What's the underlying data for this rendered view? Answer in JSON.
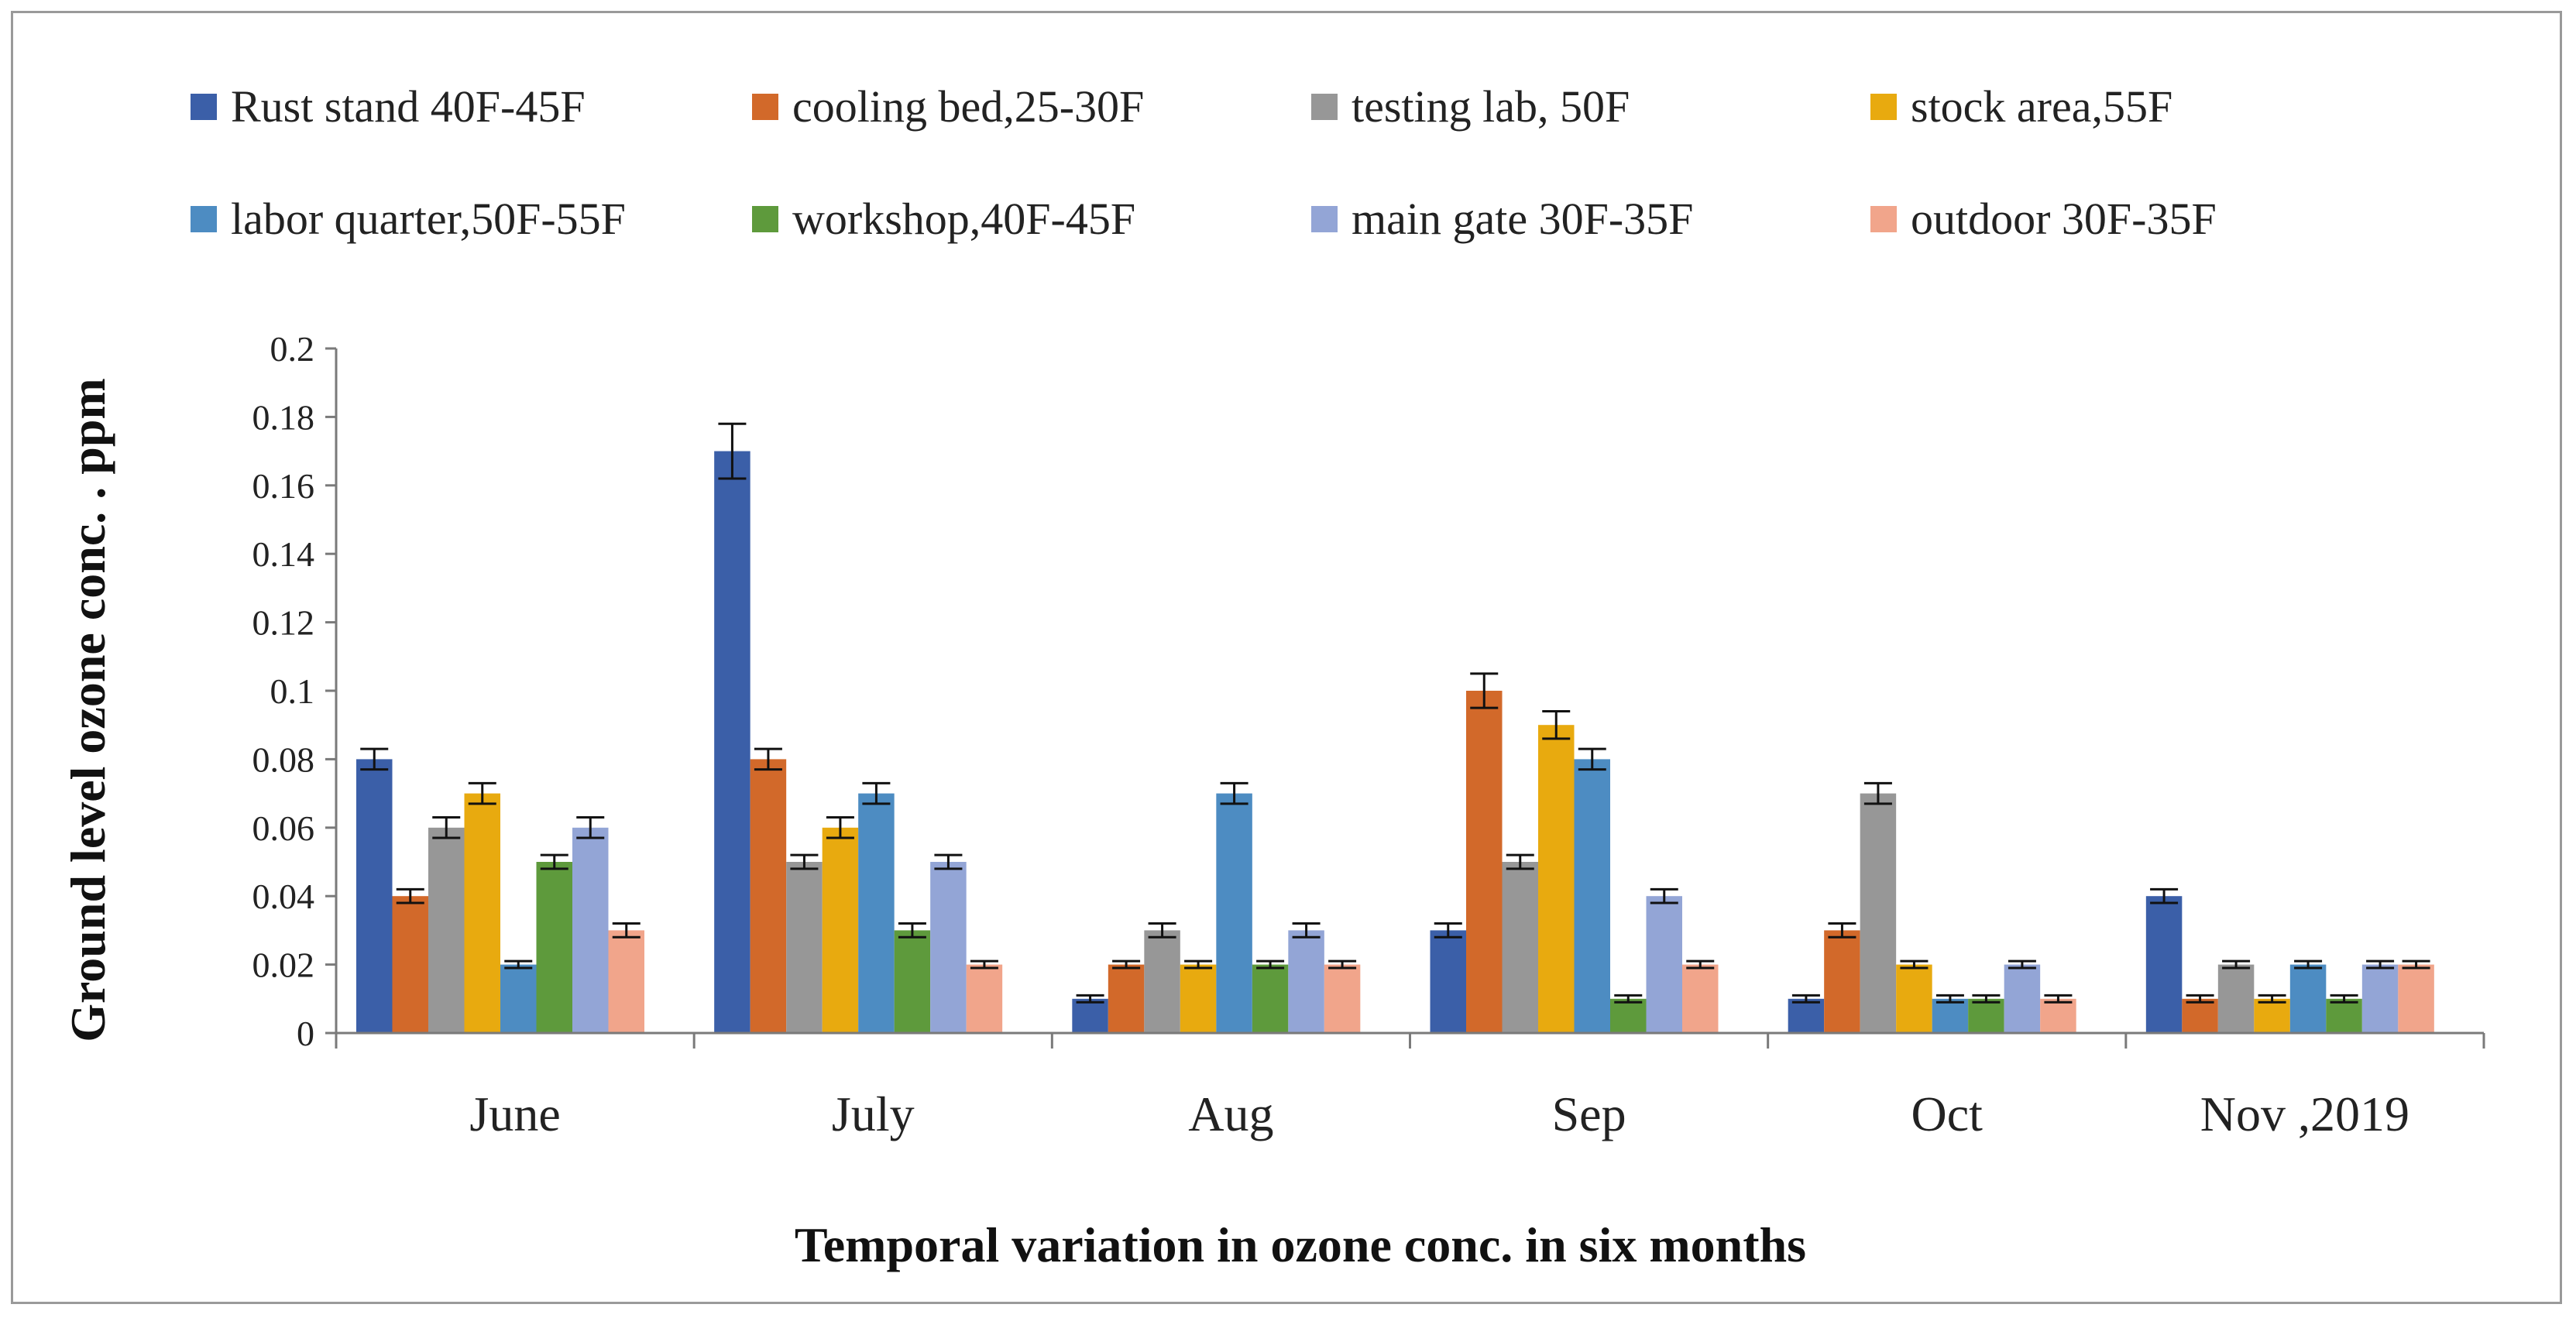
{
  "chart_data": {
    "type": "bar",
    "title": "",
    "xlabel": "Temporal variation in ozone conc. in six months",
    "ylabel": "Ground level  ozone conc. . ppm",
    "ylim": [
      0,
      0.2
    ],
    "y_ticks": [
      "0",
      "0.02",
      "0.04",
      "0.06",
      "0.08",
      "0.1",
      "0.12",
      "0.14",
      "0.16",
      "0.18",
      "0.2"
    ],
    "grid": false,
    "error_bars": true,
    "legend_position": "top",
    "categories": [
      "June",
      "July",
      "Aug",
      "Sep",
      "Oct",
      "Nov ,2019"
    ],
    "series": [
      {
        "name": "Rust stand 40F-45F",
        "color": "#3b5fa8",
        "values": [
          0.08,
          0.17,
          0.01,
          0.03,
          0.01,
          0.04
        ],
        "errors": [
          0.003,
          0.008,
          0.001,
          0.002,
          0.001,
          0.002
        ]
      },
      {
        "name": "cooling bed,25-30F",
        "color": "#d2692a",
        "values": [
          0.04,
          0.08,
          0.02,
          0.1,
          0.03,
          0.01
        ],
        "errors": [
          0.002,
          0.003,
          0.001,
          0.005,
          0.002,
          0.001
        ]
      },
      {
        "name": "testing lab, 50F",
        "color": "#979797",
        "values": [
          0.06,
          0.05,
          0.03,
          0.05,
          0.07,
          0.02
        ],
        "errors": [
          0.003,
          0.002,
          0.002,
          0.002,
          0.003,
          0.001
        ]
      },
      {
        "name": "stock area,55F",
        "color": "#e8aa0f",
        "values": [
          0.07,
          0.06,
          0.02,
          0.09,
          0.02,
          0.01
        ],
        "errors": [
          0.003,
          0.003,
          0.001,
          0.004,
          0.001,
          0.001
        ]
      },
      {
        "name": "labor quarter,50F-55F",
        "color": "#4d8cc2",
        "values": [
          0.02,
          0.07,
          0.07,
          0.08,
          0.01,
          0.02
        ],
        "errors": [
          0.001,
          0.003,
          0.003,
          0.003,
          0.001,
          0.001
        ]
      },
      {
        "name": "workshop,40F-45F",
        "color": "#5e9a3c",
        "values": [
          0.05,
          0.03,
          0.02,
          0.01,
          0.01,
          0.01
        ],
        "errors": [
          0.002,
          0.002,
          0.001,
          0.001,
          0.001,
          0.001
        ]
      },
      {
        "name": "main gate 30F-35F",
        "color": "#93a5d6",
        "values": [
          0.06,
          0.05,
          0.03,
          0.04,
          0.02,
          0.02
        ],
        "errors": [
          0.003,
          0.002,
          0.002,
          0.002,
          0.001,
          0.001
        ]
      },
      {
        "name": "outdoor 30F-35F",
        "color": "#f1a58b",
        "values": [
          0.03,
          0.02,
          0.02,
          0.02,
          0.01,
          0.02
        ],
        "errors": [
          0.002,
          0.001,
          0.001,
          0.001,
          0.001,
          0.001
        ]
      }
    ]
  }
}
